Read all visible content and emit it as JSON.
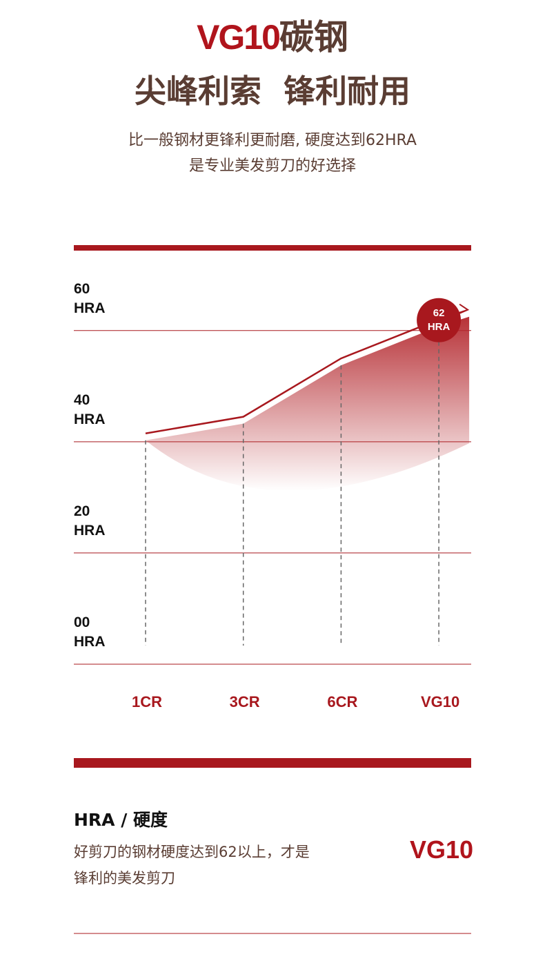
{
  "header": {
    "title_latin": "VG10",
    "title_cn": "碳钢",
    "subtitle": "尖峰利索  锋利耐用",
    "description": [
      "比一般钢材更锋利更耐磨, 硬度达到62HRA",
      "是专业美发剪刀的好选择"
    ]
  },
  "chart_data": {
    "type": "line",
    "categories": [
      "1CR",
      "3CR",
      "6CR",
      "VG10"
    ],
    "values": [
      41.5,
      44.5,
      55,
      62
    ],
    "value_labels": [
      null,
      null,
      null,
      "62\nHRA"
    ],
    "color": "#a8181e",
    "ylim": [
      0,
      75
    ],
    "yticks": [
      {
        "value": 0,
        "label": "00\nHRA"
      },
      {
        "value": 20,
        "label": "20\nHRA"
      },
      {
        "value": 40,
        "label": "40\nHRA"
      },
      {
        "value": 60,
        "label": "60\nHRA"
      }
    ],
    "grid": true
  },
  "footer": {
    "heading": "HRA / 硬度",
    "description": [
      "好剪刀的钢材硬度达到62以上，才是",
      "锋利的美发剪刀"
    ],
    "badge": "VG10"
  }
}
